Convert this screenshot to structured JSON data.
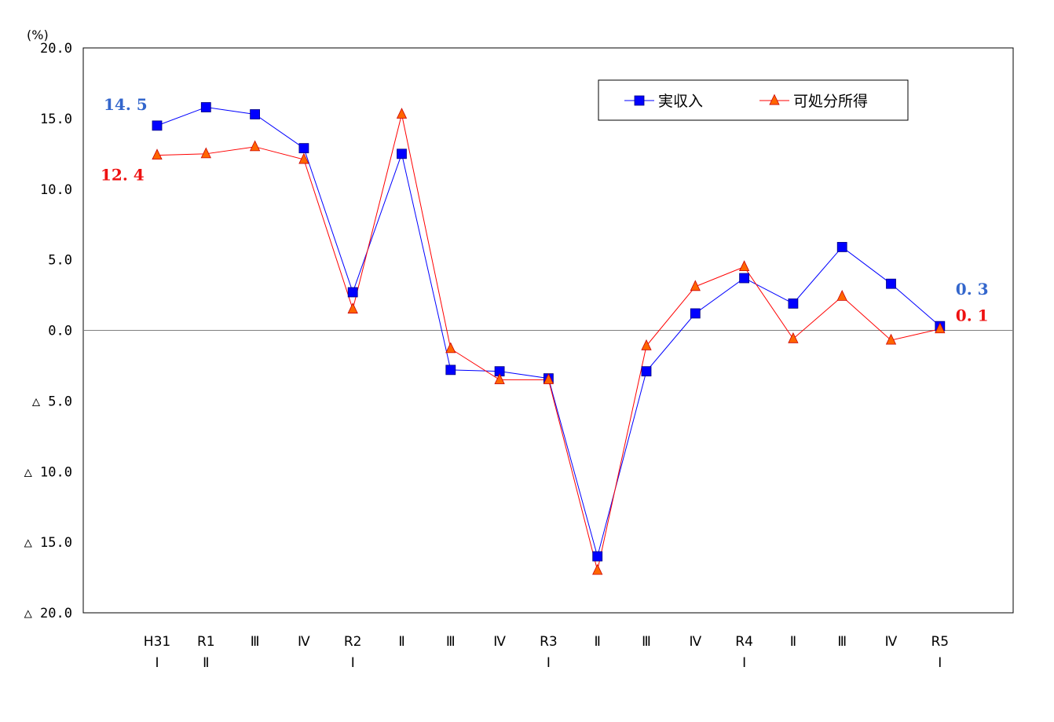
{
  "chart_data": {
    "type": "line",
    "unit_label": "(%)",
    "ylim": [
      -20,
      20
    ],
    "yticks": [
      {
        "value": 20,
        "label": "20.0"
      },
      {
        "value": 15,
        "label": "15.0"
      },
      {
        "value": 10,
        "label": "10.0"
      },
      {
        "value": 5,
        "label": "5.0"
      },
      {
        "value": 0,
        "label": "0.0"
      },
      {
        "value": -5,
        "label": "△ 5.0"
      },
      {
        "value": -10,
        "label": "△ 10.0"
      },
      {
        "value": -15,
        "label": "△ 15.0"
      },
      {
        "value": -20,
        "label": "△ 20.0"
      }
    ],
    "categories": [
      {
        "line1": "H31",
        "line2": "Ⅰ"
      },
      {
        "line1": "R1",
        "line2": "Ⅱ"
      },
      {
        "line1": "Ⅲ",
        "line2": ""
      },
      {
        "line1": "Ⅳ",
        "line2": ""
      },
      {
        "line1": "R2",
        "line2": "Ⅰ"
      },
      {
        "line1": "Ⅱ",
        "line2": ""
      },
      {
        "line1": "Ⅲ",
        "line2": ""
      },
      {
        "line1": "Ⅳ",
        "line2": ""
      },
      {
        "line1": "R3",
        "line2": "Ⅰ"
      },
      {
        "line1": "Ⅱ",
        "line2": ""
      },
      {
        "line1": "Ⅲ",
        "line2": ""
      },
      {
        "line1": "Ⅳ",
        "line2": ""
      },
      {
        "line1": "R4",
        "line2": "Ⅰ"
      },
      {
        "line1": "Ⅱ",
        "line2": ""
      },
      {
        "line1": "Ⅲ",
        "line2": ""
      },
      {
        "line1": "Ⅳ",
        "line2": ""
      },
      {
        "line1": "R5",
        "line2": "Ⅰ"
      }
    ],
    "series": [
      {
        "name": "実収入",
        "color": "#0000ff",
        "marker": "square",
        "values": [
          14.5,
          15.8,
          15.3,
          12.9,
          2.7,
          12.5,
          -2.8,
          -2.9,
          -3.4,
          -16.0,
          -2.9,
          1.2,
          3.7,
          1.9,
          5.9,
          3.3,
          0.3
        ]
      },
      {
        "name": "可処分所得",
        "color": "#ff0000",
        "marker_fill": "#ff6600",
        "marker": "triangle",
        "values": [
          12.4,
          12.5,
          13.0,
          12.1,
          1.5,
          15.3,
          -1.3,
          -3.5,
          -3.5,
          -17.0,
          -1.1,
          3.1,
          4.5,
          -0.6,
          2.4,
          -0.7,
          0.1
        ]
      }
    ],
    "annotations": [
      {
        "text": "14.5",
        "color": "#3366cc",
        "anchor": "first",
        "series": 0
      },
      {
        "text": "12.4",
        "color": "#ee1111",
        "anchor": "first",
        "series": 1
      },
      {
        "text": "0.3",
        "color": "#3366cc",
        "anchor": "last",
        "series": 0
      },
      {
        "text": "0.1",
        "color": "#ee1111",
        "anchor": "last",
        "series": 1
      }
    ],
    "legend": {
      "position": "top-right"
    },
    "grid": false
  }
}
